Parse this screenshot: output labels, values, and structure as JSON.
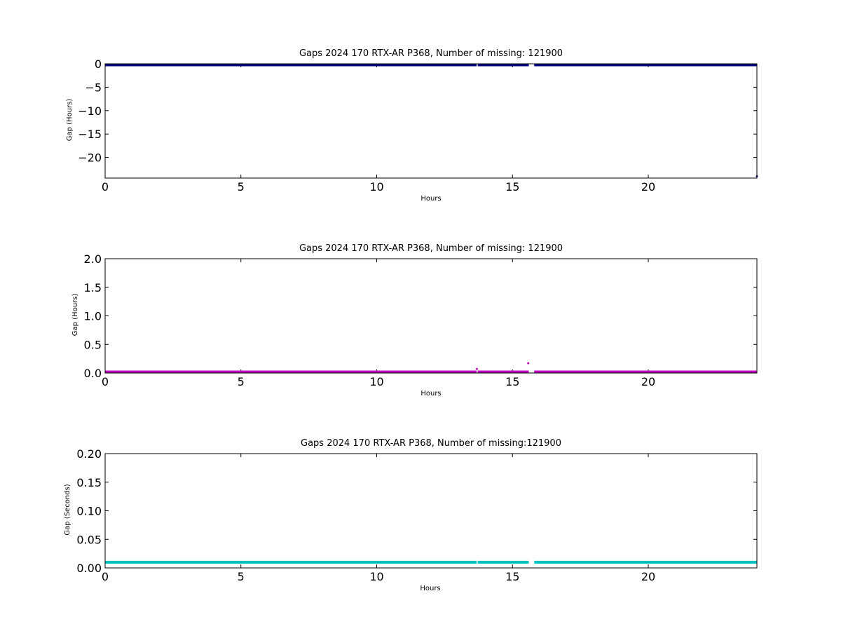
{
  "chart_data": [
    {
      "type": "scatter",
      "title": "Gaps 2024 170 RTX-AR  P368, Number of missing: 121900",
      "xlabel": "Hours",
      "ylabel": "Gap (Hours)",
      "xlim": [
        0,
        24
      ],
      "ylim": [
        -24.4,
        0
      ],
      "xticks": [
        0,
        5,
        10,
        15,
        20
      ],
      "yticks": [
        0,
        -5,
        -10,
        -15,
        -20
      ],
      "ytick_labels": [
        "0",
        "−5",
        "−10",
        "−15",
        "−20"
      ],
      "color": "#00007f",
      "series": [
        {
          "x": [
            0,
            13.68
          ],
          "y": [
            0,
            0
          ],
          "style": "band"
        },
        {
          "x": [
            13.72,
            15.6
          ],
          "y": [
            0,
            0
          ],
          "style": "band"
        },
        {
          "x": [
            15.8,
            24
          ],
          "y": [
            0,
            0
          ],
          "style": "band"
        }
      ],
      "points": [
        {
          "x": 24,
          "y": -24
        }
      ]
    },
    {
      "type": "scatter",
      "title": "Gaps 2024 170 RTX-AR  P368, Number of missing: 121900",
      "xlabel": "Hours",
      "ylabel": "Gap (Hours)",
      "xlim": [
        0,
        24
      ],
      "ylim": [
        0,
        2.0
      ],
      "xticks": [
        0,
        5,
        10,
        15,
        20
      ],
      "yticks": [
        0.0,
        0.5,
        1.0,
        1.5,
        2.0
      ],
      "ytick_labels": [
        "0.0",
        "0.5",
        "1.0",
        "1.5",
        "2.0"
      ],
      "color": "#bf00bf",
      "series": [
        {
          "x": [
            0,
            13.68
          ],
          "y": [
            0.003,
            0.003
          ],
          "style": "band"
        },
        {
          "x": [
            13.72,
            15.6
          ],
          "y": [
            0.003,
            0.003
          ],
          "style": "band"
        },
        {
          "x": [
            15.8,
            24
          ],
          "y": [
            0.003,
            0.003
          ],
          "style": "band"
        }
      ],
      "points": [
        {
          "x": 13.69,
          "y": 0.07
        },
        {
          "x": 15.58,
          "y": 0.17
        }
      ]
    },
    {
      "type": "scatter",
      "title": "Gaps 2024 170 RTX-AR  P368, Number of missing:121900",
      "xlabel": "Hours",
      "ylabel": "Gap (Seconds)",
      "xlim": [
        0,
        24
      ],
      "ylim": [
        0,
        0.2
      ],
      "xticks": [
        0,
        5,
        10,
        15,
        20
      ],
      "yticks": [
        0.0,
        0.05,
        0.1,
        0.15,
        0.2
      ],
      "ytick_labels": [
        "0.00",
        "0.05",
        "0.10",
        "0.15",
        "0.20"
      ],
      "color": "#00bfbf",
      "series": [
        {
          "x": [
            0,
            13.68
          ],
          "y": [
            0.01,
            0.01
          ],
          "style": "band"
        },
        {
          "x": [
            13.72,
            15.6
          ],
          "y": [
            0.01,
            0.01
          ],
          "style": "band"
        },
        {
          "x": [
            15.8,
            24
          ],
          "y": [
            0.01,
            0.01
          ],
          "style": "band"
        }
      ],
      "points": []
    }
  ]
}
